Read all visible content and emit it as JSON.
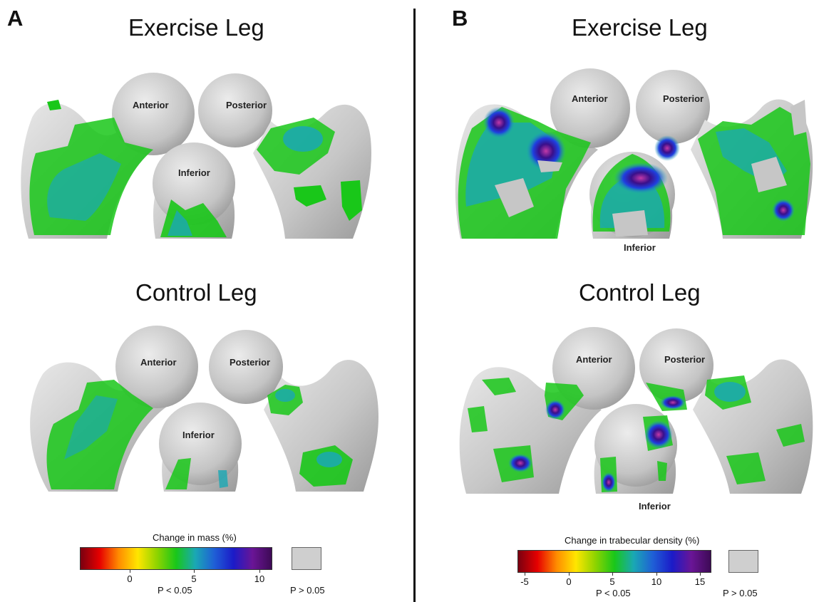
{
  "panels": [
    {
      "letter": "A",
      "exercise_title": "Exercise Leg",
      "control_title": "Control Leg",
      "views": {
        "anterior": "Anterior",
        "posterior": "Posterior",
        "inferior": "Inferior"
      },
      "scale": {
        "title": "Change in mass (%)",
        "ticks": [
          "0",
          "5",
          "10"
        ],
        "significant_label": "P < 0.05",
        "not_significant_label": "P > 0.05"
      }
    },
    {
      "letter": "B",
      "exercise_title": "Exercise Leg",
      "control_title": "Control Leg",
      "views": {
        "anterior": "Anterior",
        "posterior": "Posterior",
        "inferior": "Inferior"
      },
      "scale": {
        "title": "Change in trabecular density (%)",
        "ticks": [
          "-5",
          "0",
          "5",
          "10",
          "15"
        ],
        "significant_label": "P < 0.05",
        "not_significant_label": "P > 0.05"
      }
    }
  ],
  "colors": {
    "bone": "#c8c8c8",
    "nonsignificant": "#cfcfcf",
    "scale": [
      "#7a0010",
      "#e60000",
      "#ff8c00",
      "#ffe600",
      "#8fd400",
      "#19c719",
      "#1aa8b4",
      "#1f5fd6",
      "#1b1bc8",
      "#6a1596",
      "#3d0a55"
    ]
  }
}
